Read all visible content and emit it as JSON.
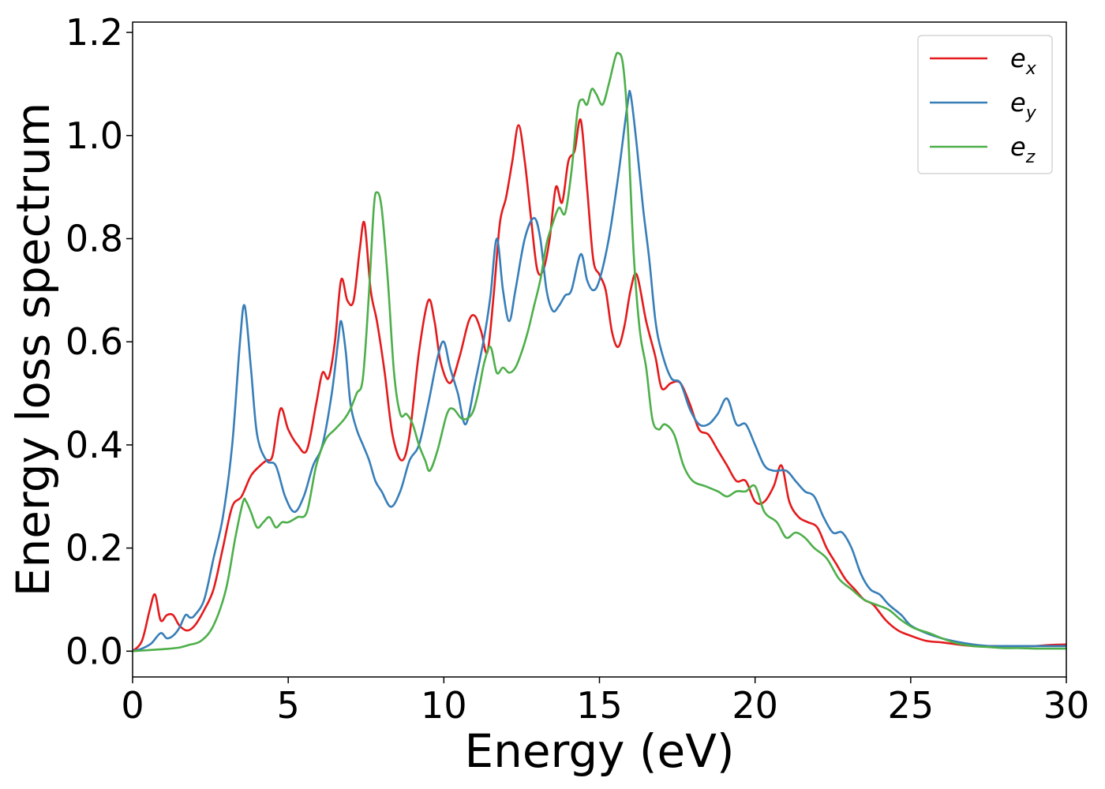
{
  "chart_data": {
    "type": "line",
    "title": "",
    "xlabel": "Energy (eV)",
    "ylabel": "Energy loss spectrum",
    "xlim": [
      0,
      30
    ],
    "ylim": [
      -0.05,
      1.22
    ],
    "xticks": [
      0,
      5,
      10,
      15,
      20,
      25,
      30
    ],
    "xtick_labels": [
      "0",
      "5",
      "10",
      "15",
      "20",
      "25",
      "30"
    ],
    "yticks": [
      0.0,
      0.2,
      0.4,
      0.6,
      0.8,
      1.0,
      1.2
    ],
    "ytick_labels": [
      "0.0",
      "0.2",
      "0.4",
      "0.6",
      "0.8",
      "1.0",
      "1.2"
    ],
    "grid": false,
    "legend_position": "top-right",
    "series": [
      {
        "name": "e_x",
        "legend_base": "e",
        "legend_sub": "x",
        "color": "#e41a1c",
        "x": [
          0,
          0.3,
          0.55,
          0.72,
          0.9,
          1.1,
          1.3,
          1.5,
          1.75,
          2.0,
          2.3,
          2.6,
          2.9,
          3.2,
          3.5,
          3.8,
          4.1,
          4.3,
          4.5,
          4.75,
          5.0,
          5.3,
          5.6,
          5.9,
          6.1,
          6.3,
          6.5,
          6.7,
          6.9,
          7.1,
          7.3,
          7.45,
          7.65,
          7.85,
          8.1,
          8.35,
          8.65,
          8.9,
          9.2,
          9.5,
          9.7,
          9.9,
          10.2,
          10.5,
          10.8,
          11.0,
          11.2,
          11.4,
          11.6,
          11.8,
          12.0,
          12.2,
          12.4,
          12.6,
          12.8,
          13.0,
          13.2,
          13.4,
          13.6,
          13.8,
          14.0,
          14.2,
          14.4,
          14.6,
          14.8,
          15.0,
          15.2,
          15.4,
          15.6,
          15.8,
          16.0,
          16.2,
          16.5,
          16.8,
          17.0,
          17.3,
          17.6,
          17.9,
          18.2,
          18.5,
          18.8,
          19.1,
          19.4,
          19.7,
          20.0,
          20.3,
          20.6,
          20.85,
          21.1,
          21.4,
          21.7,
          22.0,
          22.3,
          22.6,
          22.9,
          23.2,
          23.5,
          23.8,
          24.2,
          24.6,
          25.0,
          25.5,
          26.0,
          26.5,
          27.0,
          27.5,
          28.0,
          28.5,
          29.0,
          29.5,
          30.0
        ],
        "y": [
          0.0,
          0.02,
          0.08,
          0.11,
          0.06,
          0.07,
          0.07,
          0.05,
          0.04,
          0.05,
          0.08,
          0.12,
          0.2,
          0.28,
          0.3,
          0.34,
          0.36,
          0.37,
          0.38,
          0.47,
          0.43,
          0.4,
          0.39,
          0.48,
          0.54,
          0.53,
          0.6,
          0.72,
          0.68,
          0.68,
          0.78,
          0.83,
          0.7,
          0.64,
          0.54,
          0.42,
          0.37,
          0.42,
          0.58,
          0.68,
          0.64,
          0.56,
          0.52,
          0.57,
          0.64,
          0.65,
          0.62,
          0.58,
          0.69,
          0.83,
          0.88,
          0.95,
          1.02,
          0.95,
          0.84,
          0.74,
          0.74,
          0.8,
          0.9,
          0.87,
          0.95,
          0.97,
          1.03,
          0.9,
          0.76,
          0.73,
          0.7,
          0.62,
          0.59,
          0.63,
          0.7,
          0.73,
          0.64,
          0.57,
          0.51,
          0.52,
          0.52,
          0.48,
          0.43,
          0.42,
          0.39,
          0.36,
          0.33,
          0.33,
          0.29,
          0.29,
          0.32,
          0.36,
          0.29,
          0.26,
          0.25,
          0.24,
          0.2,
          0.17,
          0.14,
          0.12,
          0.1,
          0.09,
          0.06,
          0.04,
          0.03,
          0.02,
          0.017,
          0.013,
          0.01,
          0.01,
          0.01,
          0.01,
          0.01,
          0.012,
          0.013
        ]
      },
      {
        "name": "e_y",
        "legend_base": "e",
        "legend_sub": "y",
        "color": "#377eb8",
        "x": [
          0,
          0.3,
          0.6,
          0.9,
          1.1,
          1.3,
          1.5,
          1.7,
          1.85,
          2.0,
          2.3,
          2.6,
          2.9,
          3.2,
          3.45,
          3.6,
          3.8,
          4.0,
          4.3,
          4.6,
          4.9,
          5.2,
          5.5,
          5.8,
          6.1,
          6.4,
          6.6,
          6.7,
          6.85,
          7.0,
          7.2,
          7.4,
          7.6,
          7.8,
          8.0,
          8.3,
          8.6,
          8.9,
          9.2,
          9.5,
          9.8,
          10.0,
          10.2,
          10.45,
          10.7,
          11.0,
          11.3,
          11.5,
          11.7,
          11.9,
          12.1,
          12.3,
          12.6,
          12.9,
          13.1,
          13.3,
          13.5,
          13.7,
          13.9,
          14.1,
          14.4,
          14.6,
          14.8,
          15.0,
          15.3,
          15.6,
          15.9,
          16.0,
          16.2,
          16.4,
          16.6,
          16.8,
          17.0,
          17.3,
          17.6,
          17.9,
          18.2,
          18.5,
          18.8,
          19.1,
          19.4,
          19.7,
          20.0,
          20.3,
          20.6,
          21.0,
          21.3,
          21.6,
          21.9,
          22.2,
          22.5,
          22.8,
          23.1,
          23.4,
          23.7,
          24.0,
          24.3,
          24.7,
          25.0,
          25.5,
          26.0,
          26.5,
          27.0,
          27.5,
          28.0,
          28.5,
          29.0,
          29.5,
          30.0
        ],
        "y": [
          0.0,
          0.005,
          0.015,
          0.035,
          0.025,
          0.03,
          0.045,
          0.07,
          0.065,
          0.07,
          0.1,
          0.18,
          0.26,
          0.4,
          0.6,
          0.67,
          0.55,
          0.42,
          0.37,
          0.36,
          0.3,
          0.27,
          0.3,
          0.36,
          0.4,
          0.5,
          0.6,
          0.64,
          0.58,
          0.48,
          0.43,
          0.4,
          0.37,
          0.33,
          0.31,
          0.28,
          0.31,
          0.37,
          0.4,
          0.48,
          0.57,
          0.6,
          0.55,
          0.5,
          0.44,
          0.52,
          0.61,
          0.69,
          0.8,
          0.7,
          0.64,
          0.7,
          0.8,
          0.84,
          0.8,
          0.7,
          0.66,
          0.67,
          0.69,
          0.7,
          0.77,
          0.72,
          0.7,
          0.72,
          0.8,
          0.92,
          1.06,
          1.08,
          0.98,
          0.86,
          0.76,
          0.64,
          0.58,
          0.53,
          0.52,
          0.47,
          0.44,
          0.44,
          0.46,
          0.49,
          0.44,
          0.44,
          0.4,
          0.36,
          0.35,
          0.35,
          0.33,
          0.31,
          0.3,
          0.26,
          0.23,
          0.23,
          0.2,
          0.15,
          0.12,
          0.11,
          0.09,
          0.07,
          0.05,
          0.035,
          0.025,
          0.018,
          0.013,
          0.01,
          0.01,
          0.01,
          0.01,
          0.01,
          0.01
        ]
      },
      {
        "name": "e_z",
        "legend_base": "e",
        "legend_sub": "z",
        "color": "#4daf4a",
        "x": [
          0,
          0.5,
          1.0,
          1.5,
          1.8,
          2.2,
          2.6,
          3.0,
          3.3,
          3.55,
          3.65,
          3.8,
          4.0,
          4.2,
          4.4,
          4.6,
          4.8,
          5.0,
          5.3,
          5.6,
          5.9,
          6.2,
          6.5,
          6.8,
          7.0,
          7.2,
          7.4,
          7.6,
          7.75,
          7.85,
          8.0,
          8.2,
          8.4,
          8.6,
          8.8,
          9.0,
          9.2,
          9.4,
          9.55,
          9.8,
          10.1,
          10.3,
          10.6,
          10.9,
          11.1,
          11.3,
          11.5,
          11.7,
          11.9,
          12.1,
          12.3,
          12.5,
          12.7,
          12.9,
          13.1,
          13.3,
          13.5,
          13.7,
          13.9,
          14.1,
          14.3,
          14.45,
          14.6,
          14.75,
          14.9,
          15.1,
          15.3,
          15.5,
          15.6,
          15.75,
          15.9,
          16.1,
          16.3,
          16.5,
          16.7,
          16.9,
          17.1,
          17.4,
          17.7,
          18.0,
          18.4,
          18.8,
          19.1,
          19.4,
          19.7,
          20.0,
          20.3,
          20.7,
          21.0,
          21.3,
          21.6,
          21.9,
          22.3,
          22.7,
          23.1,
          23.5,
          23.9,
          24.3,
          24.7,
          25.1,
          25.6,
          26.0,
          26.5,
          27.0,
          27.5,
          28.0,
          28.5,
          29.0,
          29.5,
          30.0
        ],
        "y": [
          0.0,
          0.002,
          0.004,
          0.007,
          0.012,
          0.02,
          0.05,
          0.12,
          0.22,
          0.29,
          0.29,
          0.27,
          0.24,
          0.25,
          0.26,
          0.24,
          0.25,
          0.25,
          0.26,
          0.27,
          0.36,
          0.41,
          0.43,
          0.45,
          0.47,
          0.5,
          0.53,
          0.7,
          0.86,
          0.89,
          0.86,
          0.72,
          0.54,
          0.46,
          0.46,
          0.44,
          0.4,
          0.37,
          0.35,
          0.39,
          0.46,
          0.47,
          0.45,
          0.46,
          0.5,
          0.56,
          0.59,
          0.54,
          0.55,
          0.54,
          0.55,
          0.58,
          0.62,
          0.67,
          0.72,
          0.79,
          0.83,
          0.86,
          0.85,
          0.93,
          1.05,
          1.07,
          1.06,
          1.09,
          1.08,
          1.06,
          1.1,
          1.15,
          1.16,
          1.14,
          1.03,
          0.77,
          0.62,
          0.55,
          0.45,
          0.43,
          0.44,
          0.42,
          0.36,
          0.33,
          0.32,
          0.31,
          0.3,
          0.31,
          0.31,
          0.32,
          0.27,
          0.25,
          0.22,
          0.23,
          0.22,
          0.2,
          0.18,
          0.14,
          0.12,
          0.1,
          0.09,
          0.08,
          0.06,
          0.045,
          0.035,
          0.025,
          0.015,
          0.01,
          0.008,
          0.006,
          0.006,
          0.005,
          0.005,
          0.005
        ]
      }
    ]
  }
}
